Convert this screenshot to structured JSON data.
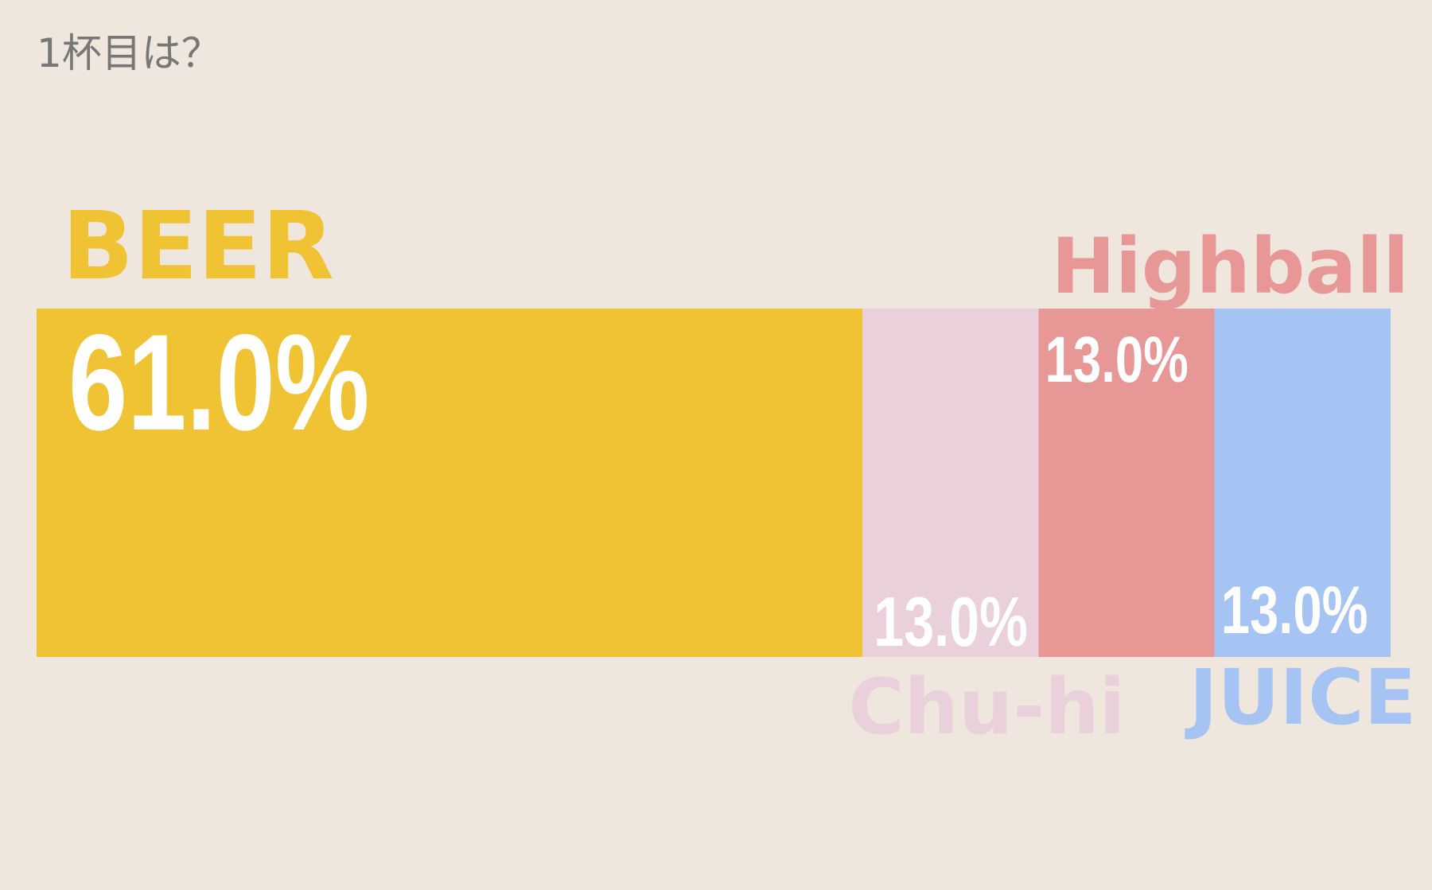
{
  "title": "1杯目は？",
  "chart_data": {
    "type": "bar",
    "orientation": "stacked-horizontal",
    "title": "1杯目は？",
    "categories": [
      "BEER",
      "Chu-hi",
      "Highball",
      "JUICE"
    ],
    "values": [
      61.0,
      13.0,
      13.0,
      13.0
    ],
    "value_labels": [
      "61.0%",
      "13.0%",
      "13.0%",
      "13.0%"
    ],
    "unit": "%",
    "colors": [
      "#efc333",
      "#e9d0db",
      "#e89797",
      "#a5c3f3"
    ],
    "label_colors": [
      "#efc333",
      "#e9d0db",
      "#e89797",
      "#a5c3f3"
    ],
    "value_label_color": "#ffffff",
    "legend": "none",
    "grid": false
  }
}
